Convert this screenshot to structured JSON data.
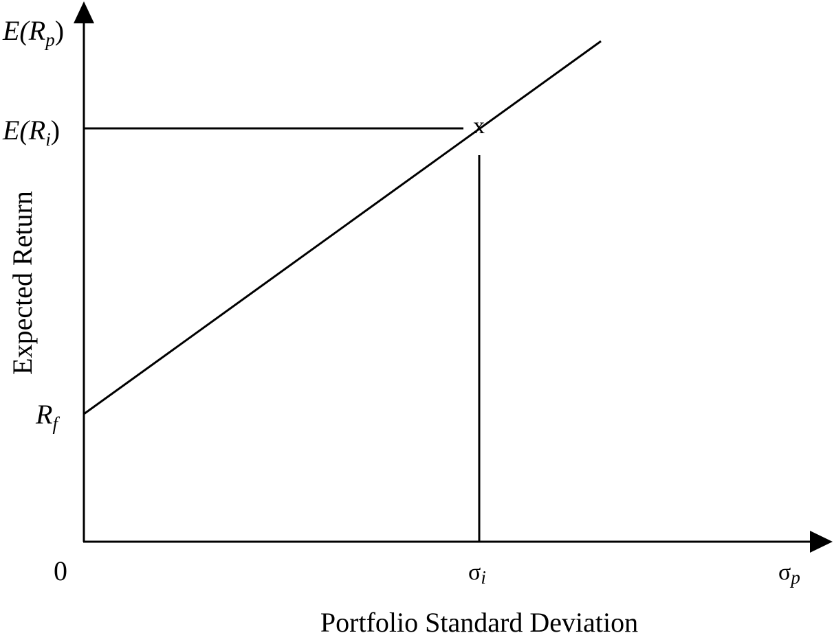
{
  "y_axis": {
    "top_label": {
      "main": "E(R",
      "sub": "p",
      "close": ")"
    },
    "title": "Expected Return"
  },
  "x_axis": {
    "right_label": {
      "main": "σ",
      "sub": "p"
    },
    "title": "Portfolio Standard Deviation"
  },
  "origin_label": "0",
  "points": {
    "er_i": {
      "main": "E(R",
      "sub": "i",
      "close": ")"
    },
    "rf": {
      "main": "R",
      "sub": "f"
    },
    "sigma_i": {
      "main": "σ",
      "sub": "i"
    },
    "marker": "x"
  },
  "colors": {
    "ink": "#000000",
    "background": "#ffffff"
  }
}
